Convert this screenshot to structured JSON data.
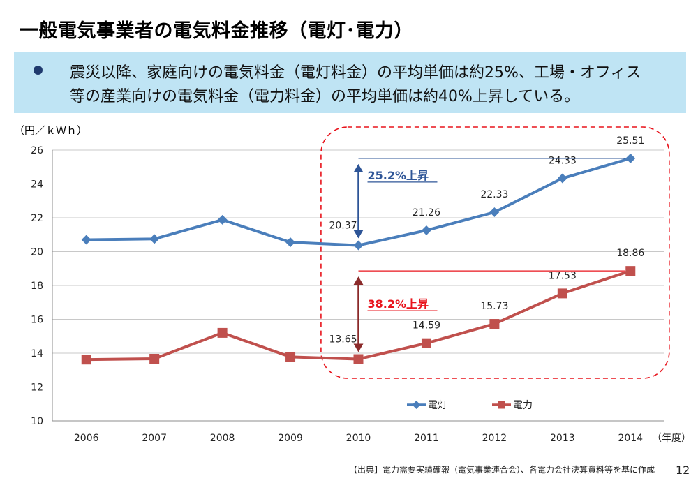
{
  "header": {
    "title": "一般電気事業者の電気料金推移（電灯･電力）"
  },
  "summary": {
    "line1": "震災以降、家庭向けの電気料金（電灯料金）の平均単価は約25%、工場・オフィス",
    "line2": "等の産業向けの電気料金（電力料金）の平均単価は約40%上昇している。"
  },
  "chart_data": {
    "type": "line",
    "x": [
      "2006",
      "2007",
      "2008",
      "2009",
      "2010",
      "2011",
      "2012",
      "2013",
      "2014"
    ],
    "ylim": [
      10,
      26
    ],
    "yticks": [
      "10",
      "12",
      "14",
      "16",
      "18",
      "20",
      "22",
      "24",
      "26"
    ],
    "ylabel": "（円／ｋＷｈ）",
    "xlabel": "（年度）",
    "grid": "horizontal",
    "legend_position": "bottom-right",
    "series": [
      {
        "name": "電灯",
        "color": "#4a7ebb",
        "marker": "diamond",
        "values": [
          20.7,
          20.75,
          21.88,
          20.55,
          20.37,
          21.26,
          22.33,
          24.33,
          25.51
        ],
        "labels": [
          "",
          "",
          "",
          "",
          "20.37",
          "21.26",
          "22.33",
          "24.33",
          "25.51"
        ]
      },
      {
        "name": "電力",
        "color": "#c0504d",
        "marker": "square",
        "values": [
          13.62,
          13.67,
          15.2,
          13.78,
          13.65,
          14.59,
          15.73,
          17.53,
          18.86
        ],
        "labels": [
          "",
          "",
          "",
          "",
          "13.65",
          "14.59",
          "15.73",
          "17.53",
          "18.86"
        ]
      }
    ],
    "annotations": [
      {
        "text": "25.2%上昇",
        "color": "#2e5597",
        "from": 20.37,
        "to": 25.51,
        "series": "電灯"
      },
      {
        "text": "38.2%上昇",
        "color": "#e8141c",
        "from": 13.65,
        "to": 18.86,
        "series": "電力"
      }
    ],
    "highlight_box": {
      "from_year": "2010",
      "to_year": "2014",
      "color": "#e8141c"
    }
  },
  "footer": {
    "source": "【出典】電力需要実績確報（電気事業連合会）、各電力会社決算資料等を基に作成",
    "page_number": "12"
  }
}
